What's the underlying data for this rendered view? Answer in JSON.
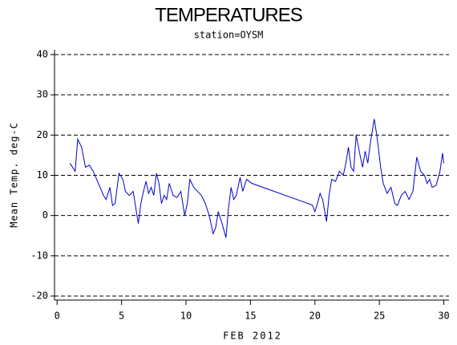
{
  "chart_data": {
    "type": "line",
    "title": "TEMPERATURES",
    "subtitle": "station=OYSM",
    "x_label": "FEB 2012",
    "y_label": "Mean Temp. deg-C",
    "xlim": [
      -0.2,
      30.4
    ],
    "ylim": [
      -21,
      41.2
    ],
    "xticks": [
      0,
      5,
      10,
      15,
      20,
      25,
      30
    ],
    "yticks": [
      -20,
      -10,
      0,
      10,
      20,
      30,
      40
    ],
    "grid": true,
    "series": [
      {
        "color": "#0000cc",
        "x": [
          1,
          1.4,
          1.6,
          1.9,
          2.2,
          2.5,
          2.8,
          3.2,
          3.6,
          3.8,
          4.1,
          4.3,
          4.5,
          4.8,
          5.1,
          5.3,
          5.6,
          5.9,
          6.1,
          6.3,
          6.5,
          6.7,
          6.9,
          7.1,
          7.3,
          7.5,
          7.7,
          7.9,
          8.1,
          8.3,
          8.5,
          8.7,
          9.0,
          9.3,
          9.6,
          9.9,
          10.1,
          10.3,
          10.6,
          10.9,
          11.2,
          11.5,
          11.8,
          12.1,
          12.3,
          12.5,
          12.8,
          13.1,
          13.3,
          13.5,
          13.7,
          13.9,
          14.2,
          14.4,
          14.7,
          15.1,
          19.8,
          20.0,
          20.2,
          20.4,
          20.6,
          20.9,
          21.1,
          21.3,
          21.6,
          21.9,
          22.2,
          22.4,
          22.6,
          22.8,
          23.0,
          23.2,
          23.5,
          23.7,
          23.9,
          24.1,
          24.3,
          24.6,
          24.8,
          25.1,
          25.3,
          25.6,
          25.9,
          26.2,
          26.4,
          26.7,
          27.0,
          27.3,
          27.6,
          27.9,
          28.2,
          28.5,
          28.7,
          28.9,
          29.1,
          29.4,
          29.7,
          29.9,
          30.0
        ],
        "values": [
          13,
          11,
          19,
          17,
          12,
          12.5,
          11,
          8,
          5,
          4,
          7,
          2.5,
          3,
          10.5,
          9,
          6,
          5,
          6,
          2,
          -2,
          3,
          6,
          8.5,
          5.5,
          7,
          5,
          10.5,
          8,
          3,
          5,
          4,
          8,
          5,
          4.5,
          6,
          0,
          3,
          9,
          7,
          6,
          5,
          3,
          0,
          -4.5,
          -3,
          1,
          -2,
          -5.5,
          2,
          7,
          4,
          5,
          9.5,
          6,
          9,
          8,
          2.6,
          1,
          3,
          5.5,
          4,
          -1.5,
          5,
          9,
          8.5,
          11,
          10,
          13,
          17,
          12,
          11,
          20,
          15,
          12,
          16,
          13,
          18,
          24,
          20,
          12,
          8,
          5.5,
          7,
          3,
          2.5,
          5,
          6,
          4,
          6,
          14.5,
          11,
          10,
          8,
          9,
          7,
          7.5,
          11,
          15.5,
          13
        ]
      }
    ]
  }
}
